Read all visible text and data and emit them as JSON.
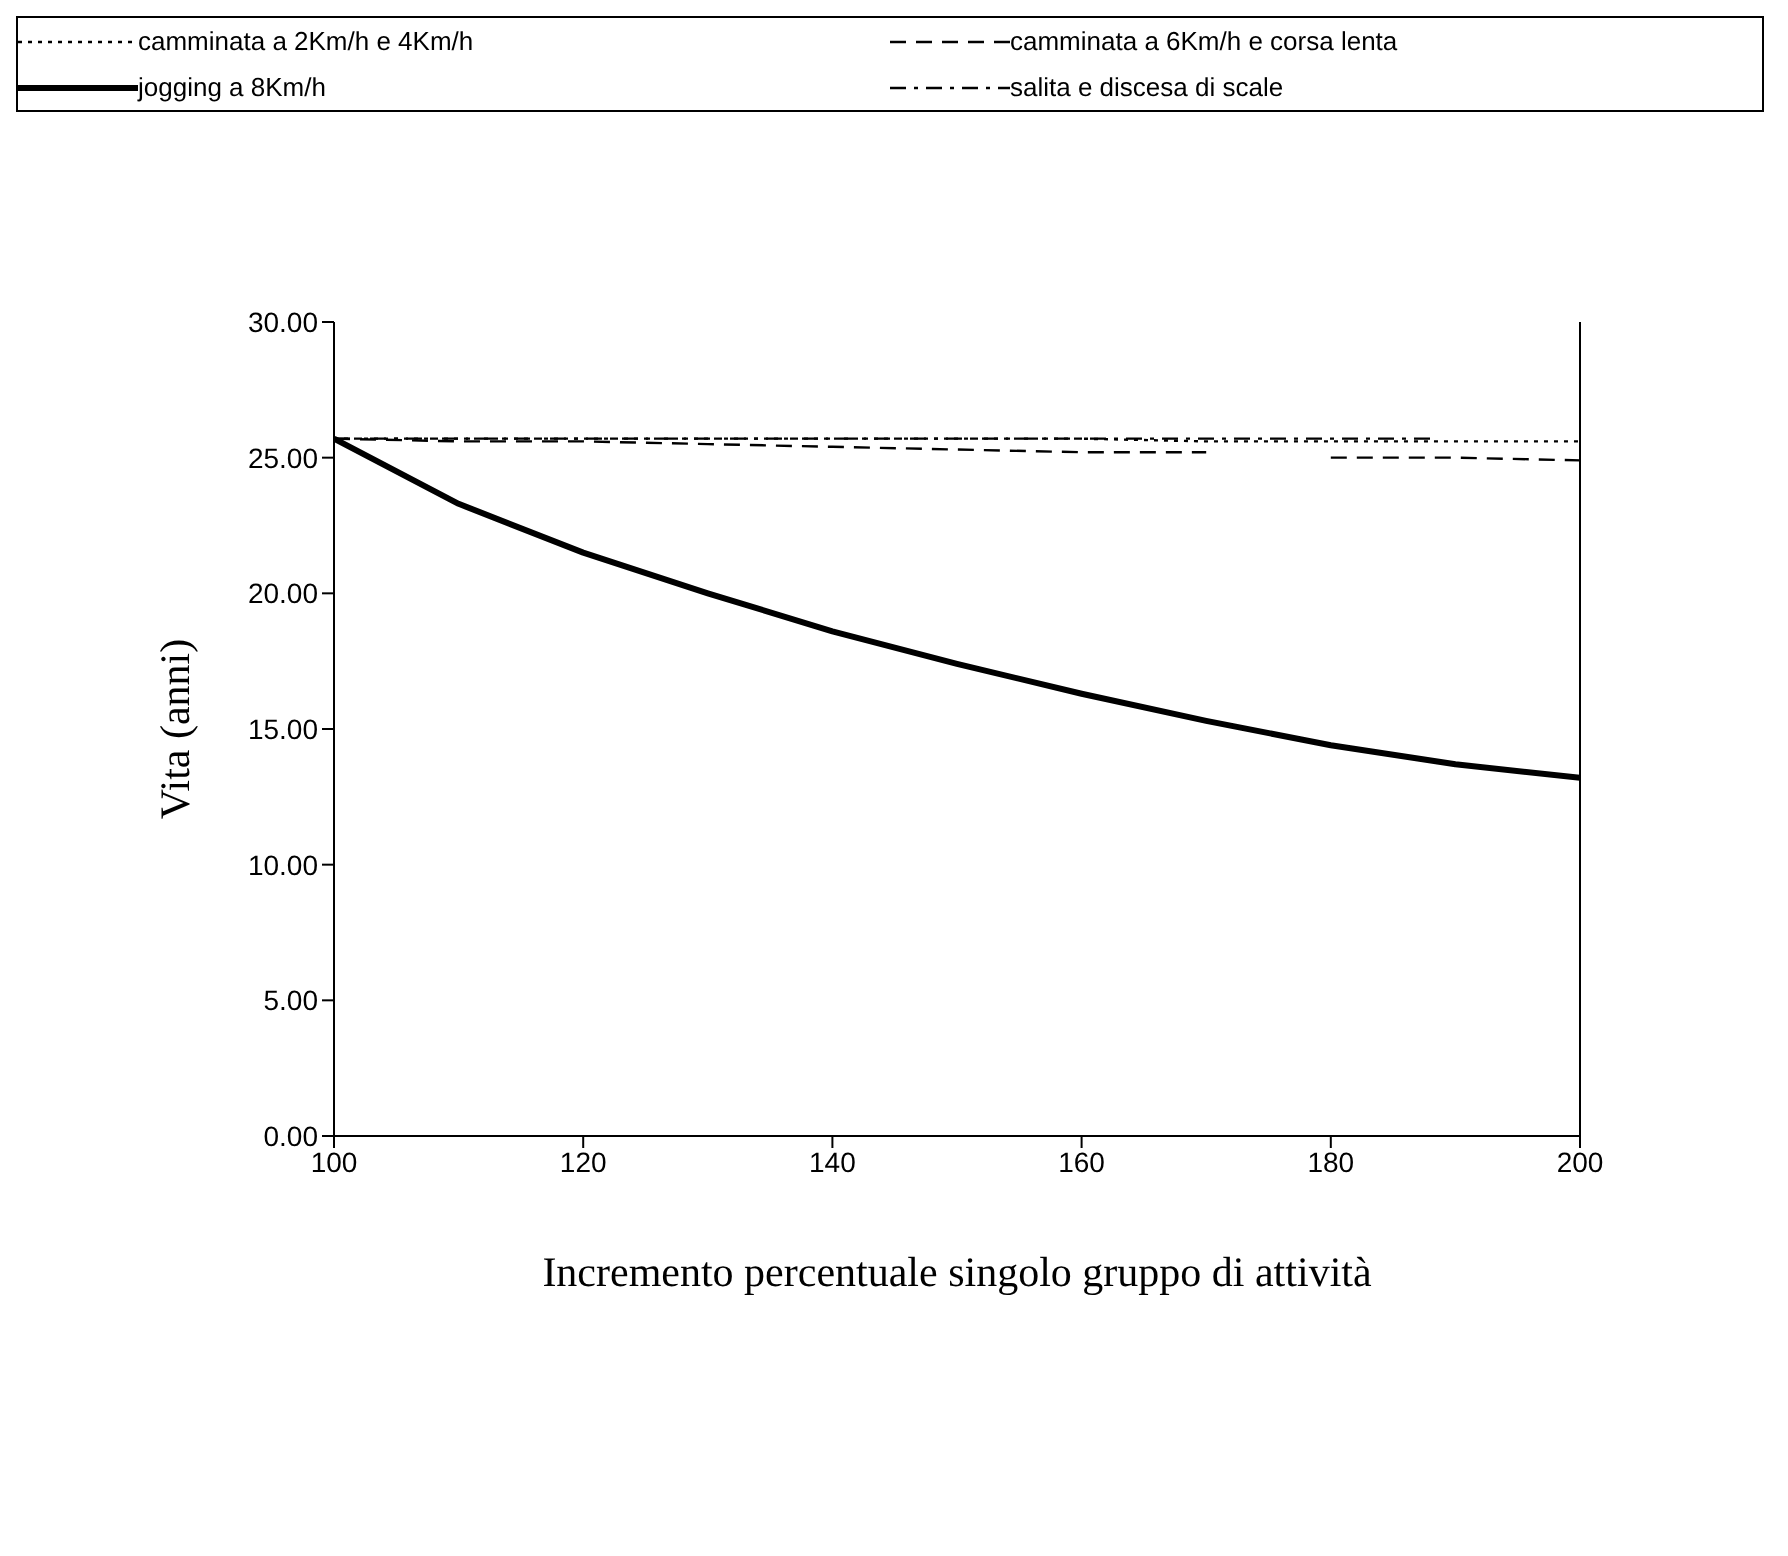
{
  "chart_data": {
    "type": "line",
    "xlabel": "Incremento percentuale singolo gruppo di attività",
    "ylabel": "Vita (anni)",
    "x": [
      100,
      110,
      120,
      130,
      140,
      150,
      160,
      170,
      180,
      190,
      200
    ],
    "xlim": [
      100,
      200
    ],
    "xticks": [
      100,
      120,
      140,
      160,
      180,
      200
    ],
    "ylim": [
      0,
      30
    ],
    "yticks": [
      {
        "value": 0,
        "label": "0.00"
      },
      {
        "value": 5,
        "label": "5.00"
      },
      {
        "value": 10,
        "label": "10.00"
      },
      {
        "value": 15,
        "label": "15.00"
      },
      {
        "value": 20,
        "label": "20.00"
      },
      {
        "value": 25,
        "label": "25.00"
      },
      {
        "value": 30,
        "label": "30.00"
      }
    ],
    "grid": false,
    "legend": "top",
    "marker": "none",
    "series": [
      {
        "name": "camminata a 2Km/h e 4Km/h",
        "color": "#000000",
        "line_style": "dotted",
        "values": [
          25.7,
          25.7,
          25.7,
          25.7,
          25.7,
          25.7,
          25.7,
          25.6,
          25.6,
          25.6,
          25.6
        ]
      },
      {
        "name": "camminata a 6Km/h e corsa lenta",
        "color": "#000000",
        "line_style": "dashed",
        "x": [
          100,
          110,
          120,
          130,
          140,
          150,
          160,
          170,
          175,
          180,
          190,
          200
        ],
        "values": [
          25.7,
          25.6,
          25.6,
          25.5,
          25.4,
          25.3,
          25.2,
          25.2,
          null,
          25.0,
          25.0,
          24.9
        ]
      },
      {
        "name": "jogging a 8Km/h",
        "color": "#000000",
        "line_style": "solid",
        "values": [
          25.7,
          23.3,
          21.5,
          20.0,
          18.6,
          17.4,
          16.3,
          15.3,
          14.4,
          13.7,
          13.2
        ]
      },
      {
        "name": "salita e discesa di scale",
        "color": "#000000",
        "line_style": "dashdot",
        "x": [
          100,
          110,
          120,
          130,
          140,
          150,
          160,
          170,
          180,
          188
        ],
        "values": [
          25.7,
          25.7,
          25.7,
          25.7,
          25.7,
          25.7,
          25.7,
          25.7,
          25.7,
          25.7
        ]
      }
    ]
  }
}
